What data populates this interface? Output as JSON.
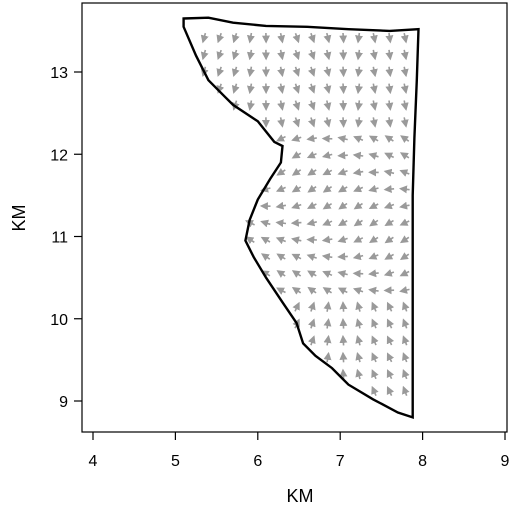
{
  "chart_data": {
    "type": "vector_field",
    "title": "",
    "xlabel": "KM",
    "ylabel": "KM",
    "xlim": [
      4,
      9
    ],
    "ylim": [
      8.6,
      13.8
    ],
    "xticks": [
      "4",
      "5",
      "6",
      "7",
      "8",
      "9"
    ],
    "yticks": [
      "9",
      "10",
      "11",
      "12",
      "13"
    ],
    "grid": false,
    "colors": {
      "boundary": "#000000",
      "vectors": "#9a9a9a",
      "background": "#ffffff"
    },
    "domain_boundary": [
      [
        5.1,
        13.65
      ],
      [
        5.4,
        13.66
      ],
      [
        5.7,
        13.6
      ],
      [
        6.1,
        13.56
      ],
      [
        6.6,
        13.55
      ],
      [
        7.1,
        13.52
      ],
      [
        7.6,
        13.5
      ],
      [
        7.95,
        13.52
      ],
      [
        7.93,
        12.9
      ],
      [
        7.9,
        12.2
      ],
      [
        7.88,
        11.5
      ],
      [
        7.88,
        10.8
      ],
      [
        7.88,
        10.1
      ],
      [
        7.88,
        9.4
      ],
      [
        7.88,
        8.8
      ],
      [
        7.7,
        8.86
      ],
      [
        7.4,
        9.02
      ],
      [
        7.1,
        9.2
      ],
      [
        6.9,
        9.4
      ],
      [
        6.7,
        9.55
      ],
      [
        6.55,
        9.7
      ],
      [
        6.47,
        9.95
      ],
      [
        6.3,
        10.2
      ],
      [
        6.1,
        10.5
      ],
      [
        5.95,
        10.75
      ],
      [
        5.85,
        10.95
      ],
      [
        5.9,
        11.2
      ],
      [
        6.0,
        11.45
      ],
      [
        6.15,
        11.7
      ],
      [
        6.28,
        11.9
      ],
      [
        6.3,
        12.1
      ],
      [
        6.2,
        12.15
      ],
      [
        6.0,
        12.4
      ],
      [
        5.7,
        12.6
      ],
      [
        5.6,
        12.7
      ],
      [
        5.4,
        12.9
      ],
      [
        5.25,
        13.2
      ],
      [
        5.1,
        13.55
      ],
      [
        5.1,
        13.65
      ]
    ]
  }
}
